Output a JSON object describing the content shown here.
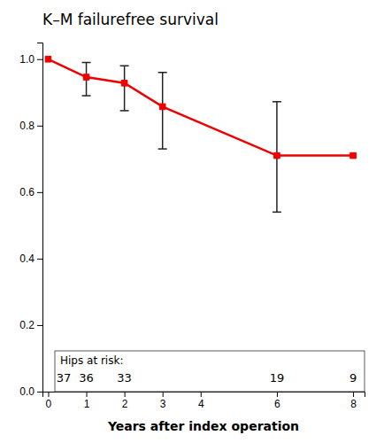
{
  "chart_data": {
    "type": "line",
    "title": "K–M failurefree survival",
    "xlabel": "Years after index operation",
    "x": [
      0,
      1,
      2,
      3,
      6,
      8
    ],
    "values": [
      1.0,
      0.946,
      0.928,
      0.857,
      0.71,
      0.71
    ],
    "error_upper": [
      null,
      0.99,
      0.98,
      0.96,
      0.872,
      null
    ],
    "error_lower": [
      null,
      0.89,
      0.845,
      0.73,
      0.54,
      null
    ],
    "color": "#ee0000",
    "marker": "square",
    "xlim": [
      -0.15,
      8.3
    ],
    "ylim": [
      0,
      1.05
    ],
    "xticks": [
      0,
      1,
      2,
      3,
      4,
      6,
      8
    ],
    "yticks": [
      {
        "value": 0.0,
        "label": "0.0"
      },
      0.2,
      0.4,
      0.6,
      0.8,
      {
        "value": 1.0,
        "label": "1.0"
      }
    ],
    "at_risk": {
      "label": "Hips at risk:",
      "x": [
        0,
        1,
        2,
        6,
        8
      ],
      "values": [
        37,
        36,
        33,
        19,
        9
      ]
    }
  }
}
